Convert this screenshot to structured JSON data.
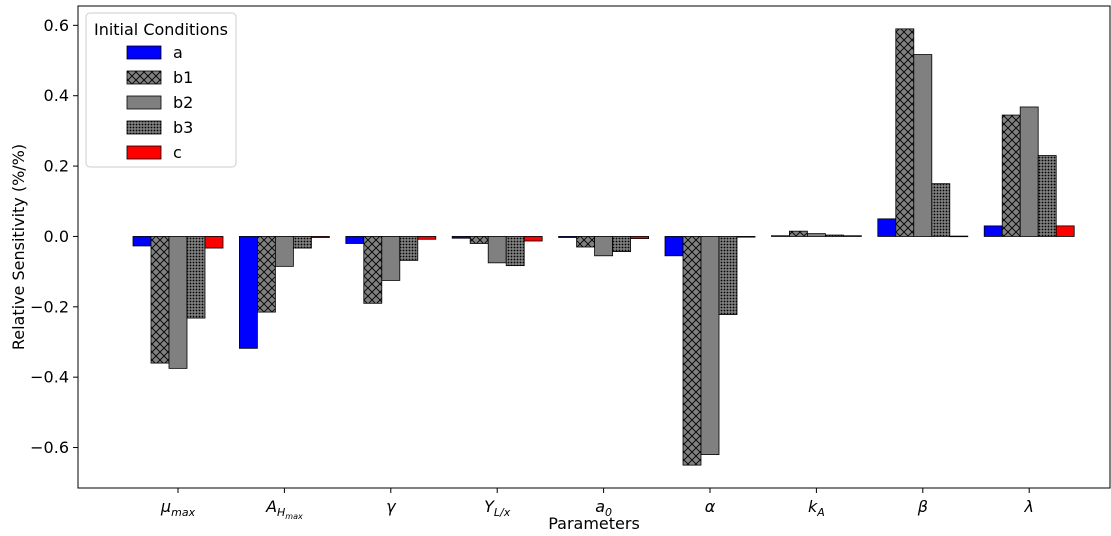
{
  "chart_data": {
    "type": "bar",
    "xlabel": "Parameters",
    "ylabel": "Relative Sensitivity (%/%)",
    "ylim": [
      -0.715,
      0.655
    ],
    "yticks": [
      -0.6,
      -0.4,
      -0.2,
      0.0,
      0.2,
      0.4,
      0.6
    ],
    "ytick_labels": [
      "−0.6",
      "−0.4",
      "−0.2",
      "0.0",
      "0.2",
      "0.4",
      "0.6"
    ],
    "categories": [
      {
        "main": "μ",
        "sub": "max",
        "subsub": ""
      },
      {
        "main": "A",
        "sub": "H",
        "subsub": "max"
      },
      {
        "main": "γ",
        "sub": "",
        "subsub": ""
      },
      {
        "main": "Y",
        "sub": "L/x",
        "subsub": ""
      },
      {
        "main": "a",
        "sub": "0",
        "subsub": ""
      },
      {
        "main": "α",
        "sub": "",
        "subsub": ""
      },
      {
        "main": "k",
        "sub": "A",
        "subsub": ""
      },
      {
        "main": "β",
        "sub": "",
        "subsub": ""
      },
      {
        "main": "λ",
        "sub": "",
        "subsub": ""
      }
    ],
    "legend": {
      "title": "Initial Conditions",
      "placement": "top-left"
    },
    "series": [
      {
        "name": "a",
        "color": "#0000ff",
        "pattern": "solid",
        "values": [
          -0.027,
          -0.318,
          -0.02,
          -0.005,
          -0.003,
          -0.055,
          0.002,
          0.05,
          0.03
        ]
      },
      {
        "name": "b1",
        "color": "#808080",
        "pattern": "crosshatch",
        "values": [
          -0.36,
          -0.215,
          -0.19,
          -0.02,
          -0.03,
          -0.65,
          0.015,
          0.59,
          0.345
        ]
      },
      {
        "name": "b2",
        "color": "#808080",
        "pattern": "solid",
        "values": [
          -0.375,
          -0.085,
          -0.125,
          -0.075,
          -0.055,
          -0.62,
          0.008,
          0.517,
          0.368
        ]
      },
      {
        "name": "b3",
        "color": "#808080",
        "pattern": "dots",
        "values": [
          -0.232,
          -0.033,
          -0.068,
          -0.083,
          -0.043,
          -0.222,
          0.004,
          0.15,
          0.23
        ]
      },
      {
        "name": "c",
        "color": "#ff0000",
        "pattern": "solid",
        "values": [
          -0.033,
          -0.003,
          -0.008,
          -0.013,
          -0.006,
          -0.002,
          0.002,
          0.001,
          0.03
        ]
      }
    ]
  }
}
